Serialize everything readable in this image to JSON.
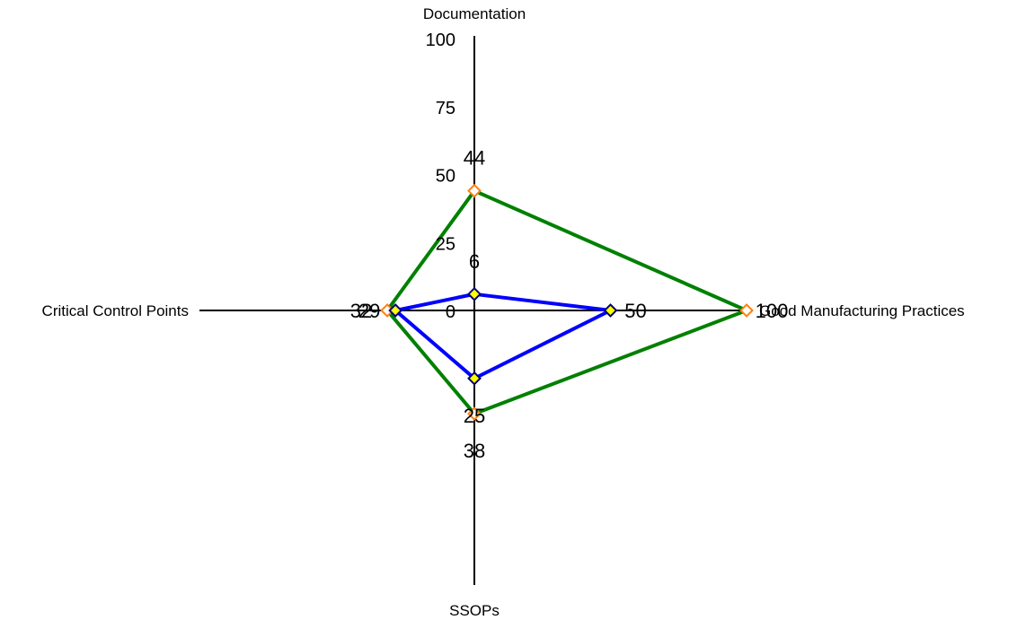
{
  "chart_data": {
    "type": "radar",
    "axes": [
      "Documentation",
      "Good Manufacturing Practices",
      "SSOPs",
      "Critical Control Points"
    ],
    "rlim": [
      0,
      100
    ],
    "ticks": [
      "0",
      "25",
      "50",
      "75",
      "100"
    ],
    "series": [
      {
        "values": [
          44,
          100,
          38,
          32
        ],
        "labels": [
          "44",
          "100",
          "38",
          "32"
        ],
        "color": "#008000",
        "marker_fill": "#ffffff",
        "marker_stroke": "#ff7f0e"
      },
      {
        "values": [
          6,
          50,
          25,
          29
        ],
        "labels": [
          "6",
          "50",
          "25",
          "29"
        ],
        "color": "#0000ff",
        "marker_fill": "#ffff00",
        "marker_stroke": "#000080"
      }
    ]
  }
}
